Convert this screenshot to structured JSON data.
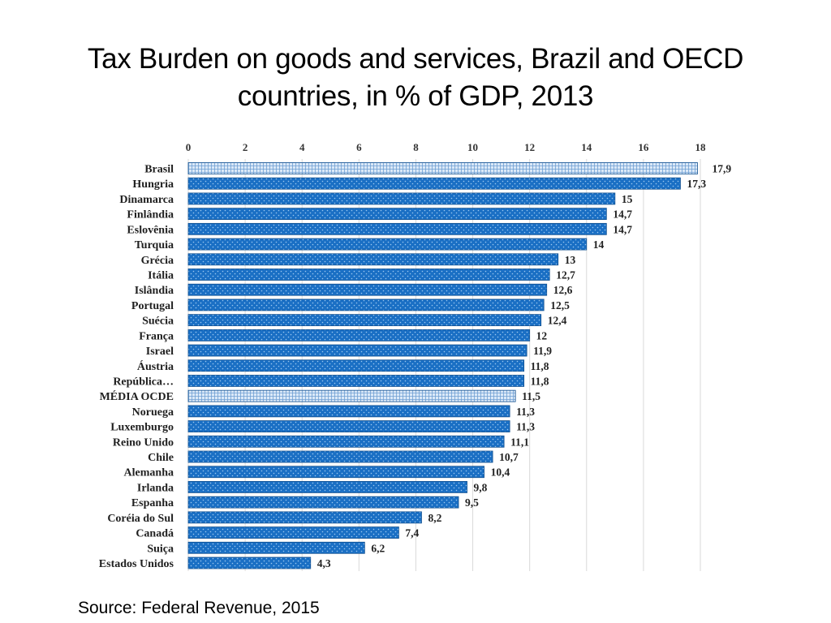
{
  "slide": {
    "title_lines": [
      "Tax Burden on goods and services, Brazil and OECD",
      "countries, in % of GDP, 2013"
    ],
    "source": "Source: Federal Revenue, 2015"
  },
  "colors": {
    "bar_fill": "#1a6fc4",
    "bar_dot": "#9cc8f0",
    "highlight_fill": "#dbe9f8",
    "highlight_grid": "#6f9fd3",
    "bar_edge": "#12508f",
    "gridline": "#d9d9d9"
  },
  "chart_data": {
    "type": "bar",
    "orientation": "horizontal",
    "title": "Tax Burden on goods and services, Brazil and OECD countries, in % of GDP, 2013",
    "xlabel": "",
    "ylabel": "",
    "xlim": [
      0,
      18
    ],
    "xticks": [
      0,
      2,
      4,
      6,
      8,
      10,
      12,
      14,
      16,
      18
    ],
    "x_axis_position": "top",
    "grid": true,
    "categories": [
      "Brasil",
      "Hungria",
      "Dinamarca",
      "Finlândia",
      "Eslovênia",
      "Turquia",
      "Grécia",
      "Itália",
      "Islândia",
      "Portugal",
      "Suécia",
      "França",
      "Israel",
      "Áustria",
      "República…",
      "MÉDIA OCDE",
      "Noruega",
      "Luxemburgo",
      "Reino Unido",
      "Chile",
      "Alemanha",
      "Irlanda",
      "Espanha",
      "Coréia do Sul",
      "Canadá",
      "Suiça",
      "Estados Unidos"
    ],
    "values": [
      17.9,
      17.3,
      15,
      14.7,
      14.7,
      14,
      13,
      12.7,
      12.6,
      12.5,
      12.4,
      12,
      11.9,
      11.8,
      11.8,
      11.5,
      11.3,
      11.3,
      11.1,
      10.7,
      10.4,
      9.8,
      9.5,
      8.2,
      7.4,
      6.2,
      4.3
    ],
    "value_labels": [
      "17,9",
      "17,3",
      "15",
      "14,7",
      "14,7",
      "14",
      "13",
      "12,7",
      "12,6",
      "12,5",
      "12,4",
      "12",
      "11,9",
      "11,8",
      "11,8",
      "11,5",
      "11,3",
      "11,3",
      "11,1",
      "10,7",
      "10,4",
      "9,8",
      "9,5",
      "8,2",
      "7,4",
      "6,2",
      "4,3"
    ],
    "highlighted": [
      "Brasil",
      "MÉDIA OCDE"
    ],
    "source": "Source: Federal Revenue, 2015"
  }
}
